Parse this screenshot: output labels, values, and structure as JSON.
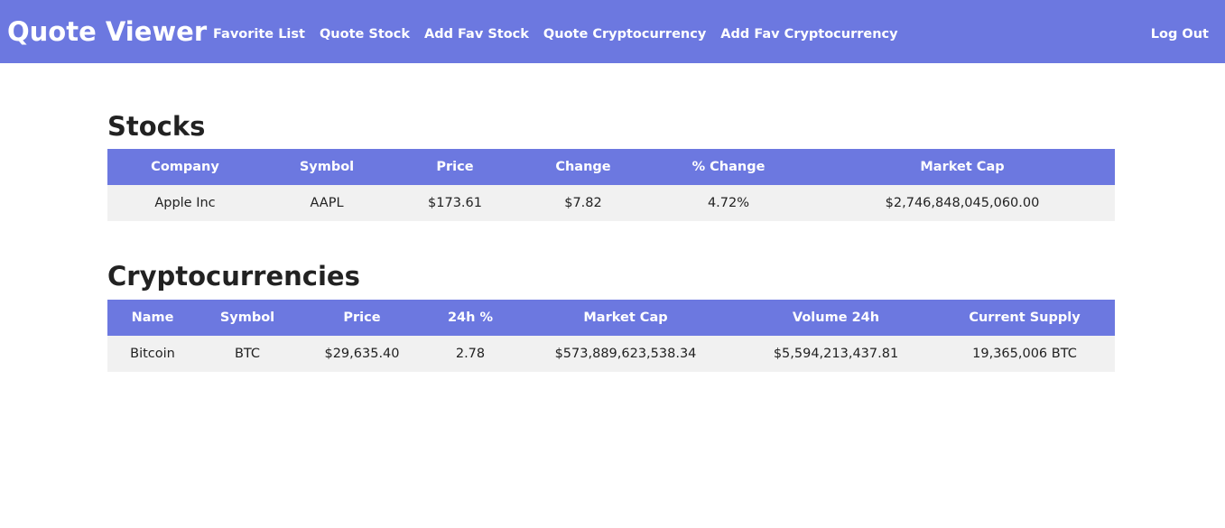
{
  "navbar": {
    "brand": "Quote Viewer",
    "links": [
      "Favorite List",
      "Quote Stock",
      "Add Fav Stock",
      "Quote Cryptocurrency",
      "Add Fav Cryptocurrency"
    ],
    "logout": "Log Out",
    "background_color": "#6c78e0"
  },
  "stocks": {
    "title": "Stocks",
    "columns": [
      "Company",
      "Symbol",
      "Price",
      "Change",
      "% Change",
      "Market Cap"
    ],
    "rows": [
      [
        "Apple Inc",
        "AAPL",
        "$173.61",
        "$7.82",
        "4.72%",
        "$2,746,848,045,060.00"
      ]
    ]
  },
  "crypto": {
    "title": "Cryptocurrencies",
    "columns": [
      "Name",
      "Symbol",
      "Price",
      "24h %",
      "Market Cap",
      "Volume 24h",
      "Current Supply"
    ],
    "rows": [
      [
        "Bitcoin",
        "BTC",
        "$29,635.40",
        "2.78",
        "$573,889,623,538.34",
        "$5,594,213,437.81",
        "19,365,006 BTC"
      ]
    ]
  },
  "colors": {
    "header_bg": "#6c78e0",
    "row_bg": "#f1f1f1",
    "header_text": "#ffffff"
  }
}
